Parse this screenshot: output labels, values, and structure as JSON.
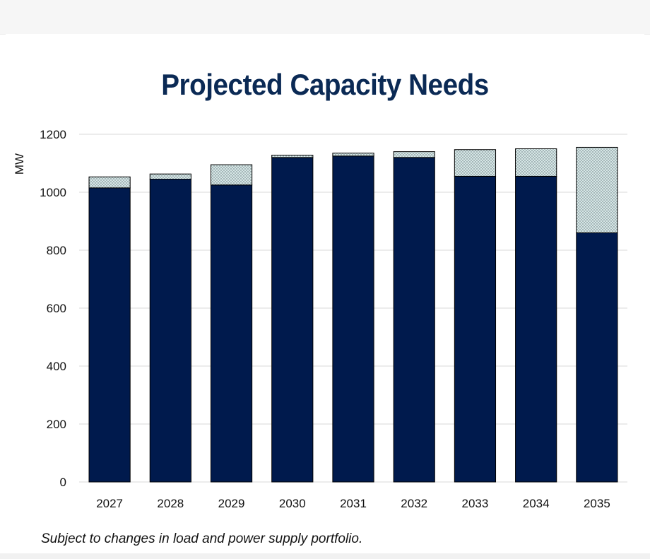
{
  "chart_data": {
    "type": "bar",
    "stacked": true,
    "title": "Projected Capacity Needs",
    "ylabel": "MW",
    "xlabel": "",
    "ylim": [
      0,
      1200
    ],
    "yticks": [
      0,
      200,
      400,
      600,
      800,
      1000,
      1200
    ],
    "grid": true,
    "categories": [
      "2027",
      "2028",
      "2029",
      "2030",
      "2031",
      "2032",
      "2033",
      "2034",
      "2035"
    ],
    "series": [
      {
        "values": [
          1015,
          1045,
          1025,
          1120,
          1125,
          1120,
          1055,
          1055,
          860
        ]
      },
      {
        "values": [
          38,
          18,
          70,
          8,
          10,
          20,
          92,
          95,
          295
        ]
      }
    ],
    "colors": {
      "base": "#001a4d",
      "top_fill": "#d6e7e6",
      "top_dots": "#5f6f77",
      "grid": "#d9d9d9"
    }
  },
  "footnote": "Subject to changes in load and power supply portfolio."
}
